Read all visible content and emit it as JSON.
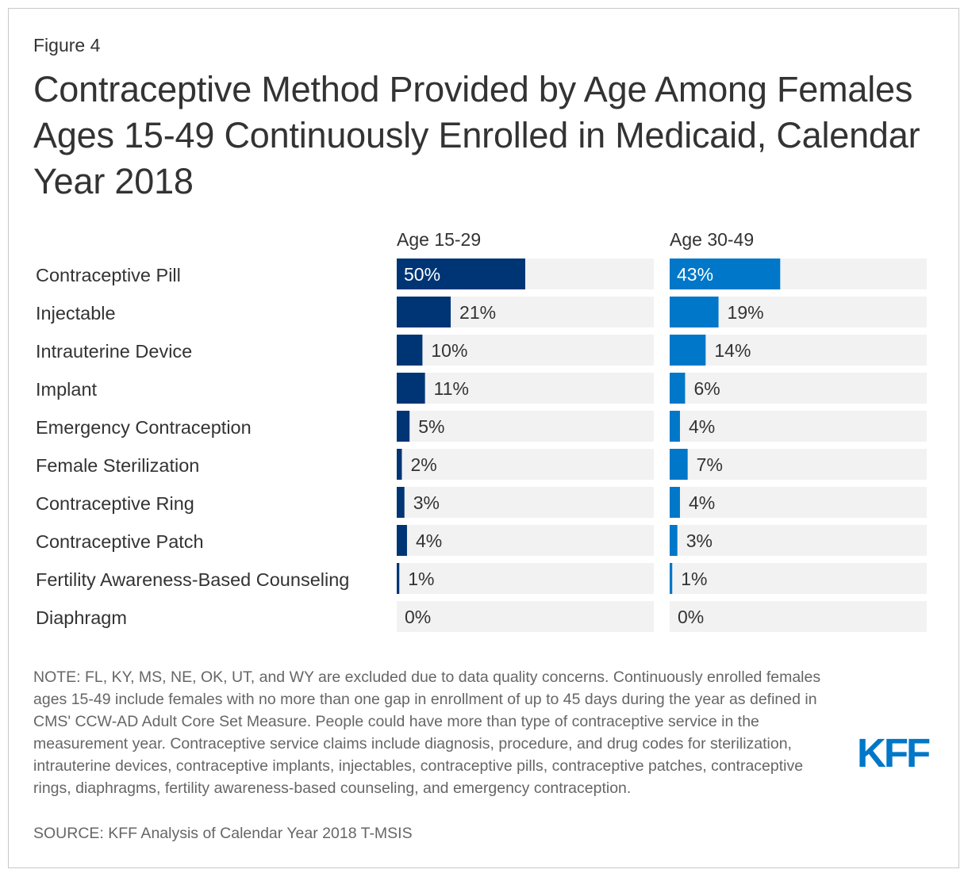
{
  "figure_label": "Figure 4",
  "title": "Contraceptive Method Provided by Age Among Females Ages 15-49 Continuously Enrolled in Medicaid, Calendar Year 2018",
  "note": "NOTE: FL, KY, MS, NE, OK, UT, and WY are excluded due to data quality concerns. Continuously enrolled females ages 15-49 include females with no more than one gap in enrollment of up to 45 days during the year as defined in CMS' CCW-AD Adult Core Set Measure. People could have more than type of contraceptive service in the measurement year. Contraceptive service claims include diagnosis, procedure, and drug codes for sterilization, intrauterine devices, contraceptive implants, injectables, contraceptive pills, contraceptive patches, contraceptive rings, diaphragms, fertility awareness-based counseling, and emergency contraception.",
  "source": "SOURCE: KFF Analysis of Calendar Year 2018 T-MSIS",
  "logo": {
    "text": "KFF",
    "color": "#0077c8"
  },
  "chart_data": {
    "type": "bar",
    "orientation": "horizontal",
    "xlim": [
      0,
      100
    ],
    "track_color": "#f2f2f2",
    "categories": [
      "Contraceptive Pill",
      "Injectable",
      "Intrauterine Device",
      "Implant",
      "Emergency Contraception",
      "Female Sterilization",
      "Contraceptive Ring",
      "Contraceptive Patch",
      "Fertility Awareness-Based Counseling",
      "Diaphragm"
    ],
    "series": [
      {
        "name": "Age 15-29",
        "color": "#003575",
        "values": [
          50,
          21,
          10,
          11,
          5,
          2,
          3,
          4,
          1,
          0
        ]
      },
      {
        "name": "Age 30-49",
        "color": "#0077c8",
        "values": [
          43,
          19,
          14,
          6,
          4,
          7,
          4,
          3,
          1,
          0
        ]
      }
    ]
  }
}
